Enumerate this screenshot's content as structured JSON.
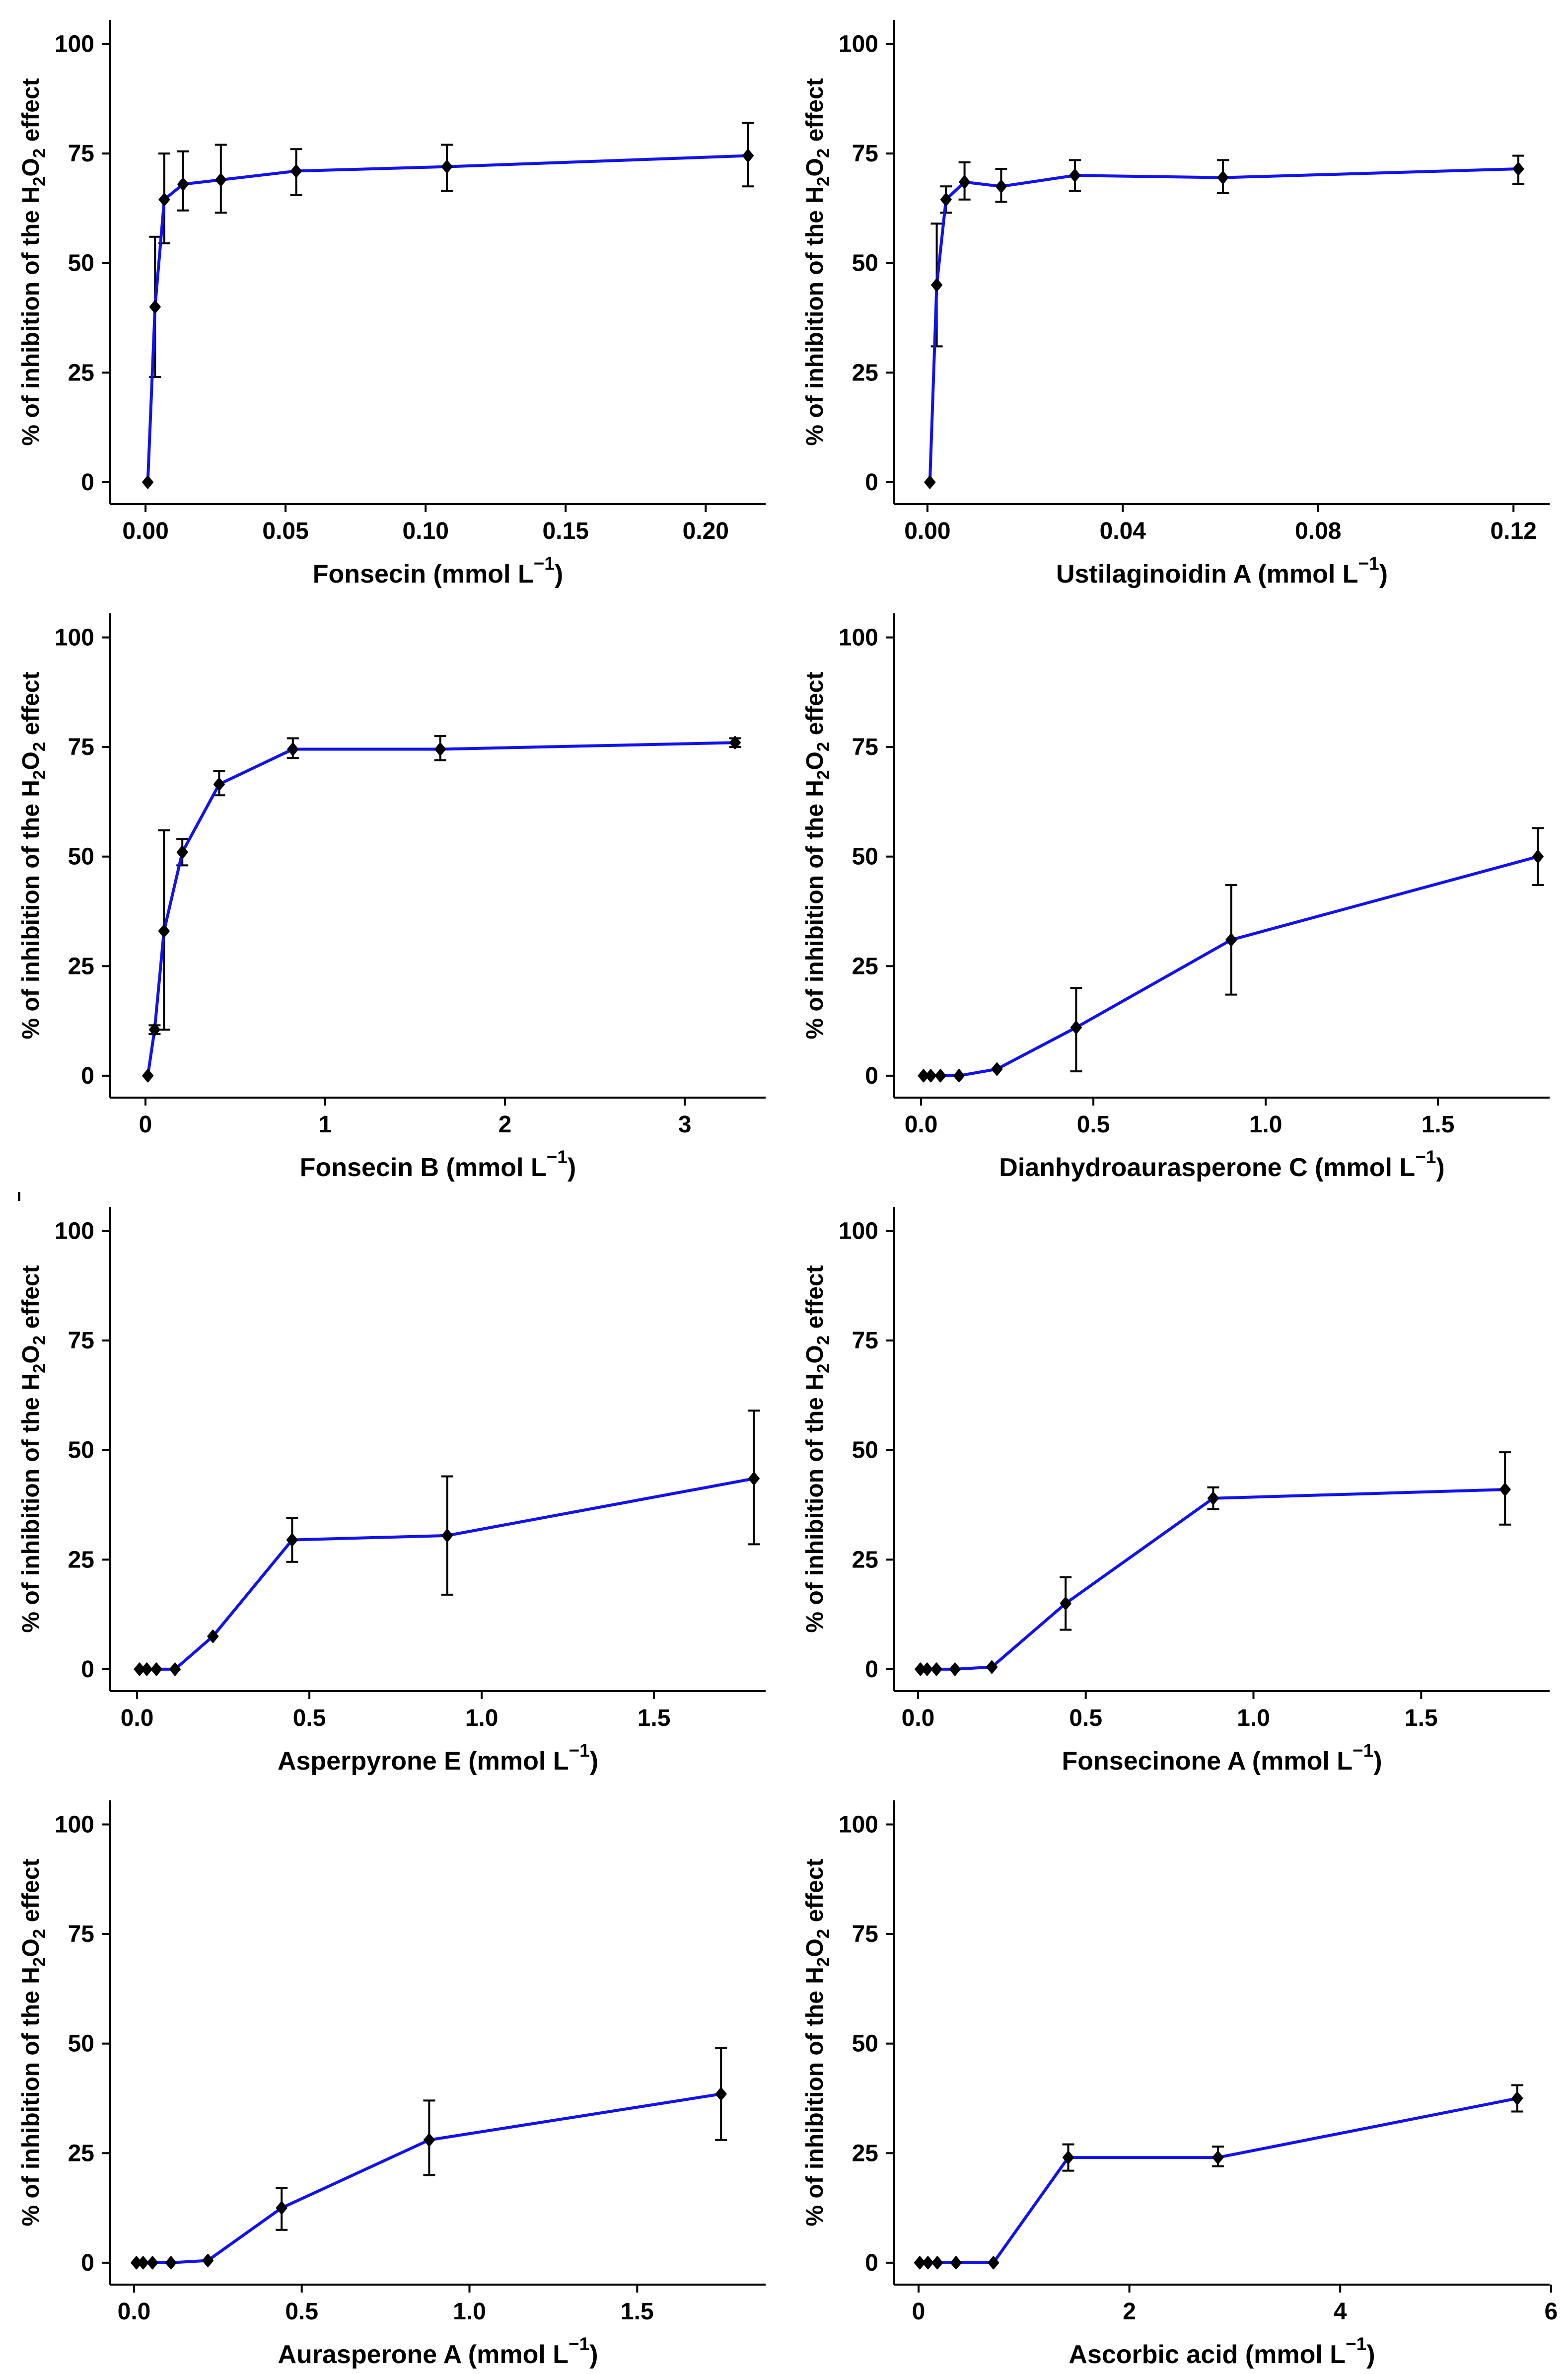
{
  "figure": {
    "background": "#ffffff",
    "axis_color": "#000000",
    "text_color": "#000000",
    "line_color": "#1212ee",
    "marker_color": "#000000",
    "ylabel": "% of inhibition of the H2O2 effect",
    "ylabel_parts": [
      {
        "t": "% of inhibition of the H"
      },
      {
        "t": "2",
        "shift": "sub"
      },
      {
        "t": "O"
      },
      {
        "t": "2",
        "shift": "sub"
      },
      {
        "t": " effect"
      }
    ],
    "y_ticks": [
      {
        "v": 0,
        "label": "0"
      },
      {
        "v": 25,
        "label": "25"
      },
      {
        "v": 50,
        "label": "50"
      },
      {
        "v": 75,
        "label": "75"
      },
      {
        "v": 100,
        "label": "100"
      }
    ],
    "ylim": [
      -5,
      105.5
    ],
    "grid": "off",
    "legend": "none"
  },
  "chart_data": [
    {
      "type": "line",
      "compound": "Fonsecin",
      "xlabel": "Fonsecin (mmol L-1)",
      "xlabel_parts": [
        {
          "t": "Fonsecin (mmol L"
        },
        {
          "t": "−1",
          "shift": "sup"
        },
        {
          "t": ")"
        }
      ],
      "xlim": [
        -0.0126,
        0.2214
      ],
      "x_ticks": [
        {
          "v": 0,
          "label": "0.00"
        },
        {
          "v": 0.05,
          "label": "0.05"
        },
        {
          "v": 0.1,
          "label": "0.10"
        },
        {
          "v": 0.15,
          "label": "0.15"
        },
        {
          "v": 0.2,
          "label": "0.20"
        }
      ],
      "points": [
        {
          "x": 0.0008,
          "y": 0
        },
        {
          "x": 0.0034,
          "y": 40,
          "lo": 24,
          "hi": 56
        },
        {
          "x": 0.0067,
          "y": 64.5,
          "lo": 54.5,
          "hi": 75
        },
        {
          "x": 0.0134,
          "y": 68,
          "lo": 62,
          "hi": 75.5
        },
        {
          "x": 0.0269,
          "y": 69,
          "lo": 61.5,
          "hi": 77
        },
        {
          "x": 0.0538,
          "y": 71,
          "lo": 65.5,
          "hi": 76
        },
        {
          "x": 0.1076,
          "y": 72,
          "lo": 66.5,
          "hi": 77
        },
        {
          "x": 0.2151,
          "y": 74.5,
          "lo": 67.5,
          "hi": 82
        }
      ]
    },
    {
      "type": "line",
      "compound": "Ustilaginoidin A",
      "xlabel": "Ustilaginoidin A (mmol L-1)",
      "xlabel_parts": [
        {
          "t": "Ustilaginoidin A (mmol L"
        },
        {
          "t": "−1",
          "shift": "sup"
        },
        {
          "t": ")"
        }
      ],
      "xlim": [
        -0.0068,
        0.1274
      ],
      "x_ticks": [
        {
          "v": 0,
          "label": "0.00"
        },
        {
          "v": 0.04,
          "label": "0.04"
        },
        {
          "v": 0.08,
          "label": "0.08"
        },
        {
          "v": 0.12,
          "label": "0.12"
        }
      ],
      "points": [
        {
          "x": 0.0005,
          "y": 0
        },
        {
          "x": 0.0019,
          "y": 45,
          "lo": 31,
          "hi": 59
        },
        {
          "x": 0.0038,
          "y": 64.5,
          "lo": 61.5,
          "hi": 67.5
        },
        {
          "x": 0.0076,
          "y": 68.5,
          "lo": 64.5,
          "hi": 73
        },
        {
          "x": 0.0151,
          "y": 67.5,
          "lo": 64,
          "hi": 71.5
        },
        {
          "x": 0.0302,
          "y": 70,
          "lo": 66.5,
          "hi": 73.5
        },
        {
          "x": 0.0605,
          "y": 69.5,
          "lo": 66,
          "hi": 73.5
        },
        {
          "x": 0.121,
          "y": 71.5,
          "lo": 68,
          "hi": 74.5
        }
      ]
    },
    {
      "type": "line",
      "compound": "Fonsecin B",
      "xlabel": "Fonsecin B (mmol L-1)",
      "xlabel_parts": [
        {
          "t": "Fonsecin B (mmol L"
        },
        {
          "t": "−1",
          "shift": "sup"
        },
        {
          "t": ")"
        }
      ],
      "xlim": [
        -0.196,
        3.45
      ],
      "x_ticks": [
        {
          "v": 0,
          "label": "0"
        },
        {
          "v": 1,
          "label": "1"
        },
        {
          "v": 2,
          "label": "2"
        },
        {
          "v": 3,
          "label": "3"
        }
      ],
      "points": [
        {
          "x": 0.013,
          "y": 0
        },
        {
          "x": 0.051,
          "y": 10.5,
          "lo": 9.5,
          "hi": 11.5
        },
        {
          "x": 0.103,
          "y": 33,
          "lo": 10.5,
          "hi": 56
        },
        {
          "x": 0.205,
          "y": 51,
          "lo": 48,
          "hi": 54
        },
        {
          "x": 0.41,
          "y": 66.5,
          "lo": 64,
          "hi": 69.5
        },
        {
          "x": 0.82,
          "y": 74.5,
          "lo": 72.5,
          "hi": 77
        },
        {
          "x": 1.64,
          "y": 74.5,
          "lo": 72,
          "hi": 77.5
        },
        {
          "x": 3.28,
          "y": 76,
          "lo": 75,
          "hi": 77
        }
      ]
    },
    {
      "type": "line",
      "compound": "Dianhydroaurasperone C",
      "xlabel": "Dianhydroaurasperone C (mmol L-1)",
      "xlabel_parts": [
        {
          "t": "Dianhydroaurasperone C (mmol L"
        },
        {
          "t": "−1",
          "shift": "sup"
        },
        {
          "t": ")"
        }
      ],
      "xlim": [
        -0.078,
        1.824
      ],
      "x_ticks": [
        {
          "v": 0,
          "label": "0.0"
        },
        {
          "v": 0.5,
          "label": "0.5"
        },
        {
          "v": 1,
          "label": "1.0"
        },
        {
          "v": 1.5,
          "label": "1.5"
        }
      ],
      "points": [
        {
          "x": 0.007,
          "y": 0
        },
        {
          "x": 0.028,
          "y": 0
        },
        {
          "x": 0.056,
          "y": 0
        },
        {
          "x": 0.11,
          "y": 0
        },
        {
          "x": 0.22,
          "y": 1.5
        },
        {
          "x": 0.45,
          "y": 11,
          "lo": 1,
          "hi": 20
        },
        {
          "x": 0.9,
          "y": 31,
          "lo": 18.5,
          "hi": 43.5
        },
        {
          "x": 1.79,
          "y": 50,
          "lo": 43.5,
          "hi": 56.5
        }
      ]
    },
    {
      "type": "line",
      "compound": "Asperpyrone E",
      "xlabel": "Asperpyrone E (mmol L-1)",
      "xlabel_parts": [
        {
          "t": "Asperpyrone E (mmol L"
        },
        {
          "t": "−1",
          "shift": "sup"
        },
        {
          "t": ")"
        }
      ],
      "xlim": [
        -0.078,
        1.824
      ],
      "x_ticks": [
        {
          "v": 0,
          "label": "0.0"
        },
        {
          "v": 0.5,
          "label": "0.5"
        },
        {
          "v": 1,
          "label": "1.0"
        },
        {
          "v": 1.5,
          "label": "1.5"
        }
      ],
      "points": [
        {
          "x": 0.007,
          "y": 0
        },
        {
          "x": 0.028,
          "y": 0
        },
        {
          "x": 0.056,
          "y": 0
        },
        {
          "x": 0.11,
          "y": 0
        },
        {
          "x": 0.22,
          "y": 7.5
        },
        {
          "x": 0.45,
          "y": 29.5,
          "lo": 24.5,
          "hi": 34.5
        },
        {
          "x": 0.9,
          "y": 30.5,
          "lo": 17,
          "hi": 44
        },
        {
          "x": 1.79,
          "y": 43.5,
          "lo": 28.5,
          "hi": 59
        }
      ]
    },
    {
      "type": "line",
      "compound": "Fonsecinone A",
      "xlabel": "Fonsecinone A (mmol L-1)",
      "xlabel_parts": [
        {
          "t": "Fonsecinone A (mmol L"
        },
        {
          "t": "−1",
          "shift": "sup"
        },
        {
          "t": ")"
        }
      ],
      "xlim": [
        -0.071,
        1.883
      ],
      "x_ticks": [
        {
          "v": 0,
          "label": "0.0"
        },
        {
          "v": 0.5,
          "label": "0.5"
        },
        {
          "v": 1,
          "label": "1.0"
        },
        {
          "v": 1.5,
          "label": "1.5"
        }
      ],
      "points": [
        {
          "x": 0.007,
          "y": 0
        },
        {
          "x": 0.027,
          "y": 0
        },
        {
          "x": 0.055,
          "y": 0
        },
        {
          "x": 0.11,
          "y": 0
        },
        {
          "x": 0.22,
          "y": 0.5
        },
        {
          "x": 0.44,
          "y": 15,
          "lo": 9,
          "hi": 21
        },
        {
          "x": 0.88,
          "y": 39,
          "lo": 36.5,
          "hi": 41.5
        },
        {
          "x": 1.75,
          "y": 41,
          "lo": 33,
          "hi": 49.5
        }
      ]
    },
    {
      "type": "line",
      "compound": "Aurasperone A",
      "xlabel": "Aurasperone A (mmol L-1)",
      "xlabel_parts": [
        {
          "t": "Aurasperone A (mmol L"
        },
        {
          "t": "−1",
          "shift": "sup"
        },
        {
          "t": ")"
        }
      ],
      "xlim": [
        -0.071,
        1.883
      ],
      "x_ticks": [
        {
          "v": 0,
          "label": "0.0"
        },
        {
          "v": 0.5,
          "label": "0.5"
        },
        {
          "v": 1,
          "label": "1.0"
        },
        {
          "v": 1.5,
          "label": "1.5"
        }
      ],
      "points": [
        {
          "x": 0.007,
          "y": 0
        },
        {
          "x": 0.027,
          "y": 0
        },
        {
          "x": 0.055,
          "y": 0
        },
        {
          "x": 0.11,
          "y": 0
        },
        {
          "x": 0.22,
          "y": 0.5
        },
        {
          "x": 0.44,
          "y": 12.5,
          "lo": 7.5,
          "hi": 17
        },
        {
          "x": 0.88,
          "y": 28,
          "lo": 20,
          "hi": 37
        },
        {
          "x": 1.75,
          "y": 38.5,
          "lo": 28,
          "hi": 49
        }
      ]
    },
    {
      "type": "line",
      "compound": "Ascorbic acid",
      "xlabel": "Ascorbic acid (mmol L-1)",
      "xlabel_parts": [
        {
          "t": "Ascorbic acid (mmol L"
        },
        {
          "t": "−1",
          "shift": "sup"
        },
        {
          "t": ")"
        }
      ],
      "xlim": [
        -0.231,
        5.987
      ],
      "x_ticks": [
        {
          "v": 0,
          "label": "0"
        },
        {
          "v": 2,
          "label": "2"
        },
        {
          "v": 4,
          "label": "4"
        },
        {
          "v": 6,
          "label": "6"
        }
      ],
      "points": [
        {
          "x": 0.011,
          "y": 0
        },
        {
          "x": 0.089,
          "y": 0
        },
        {
          "x": 0.178,
          "y": 0
        },
        {
          "x": 0.355,
          "y": 0
        },
        {
          "x": 0.71,
          "y": 0
        },
        {
          "x": 1.42,
          "y": 24,
          "lo": 21,
          "hi": 27
        },
        {
          "x": 2.84,
          "y": 24,
          "lo": 22,
          "hi": 26.5
        },
        {
          "x": 5.68,
          "y": 37.5,
          "lo": 34.5,
          "hi": 40.5
        }
      ]
    }
  ]
}
